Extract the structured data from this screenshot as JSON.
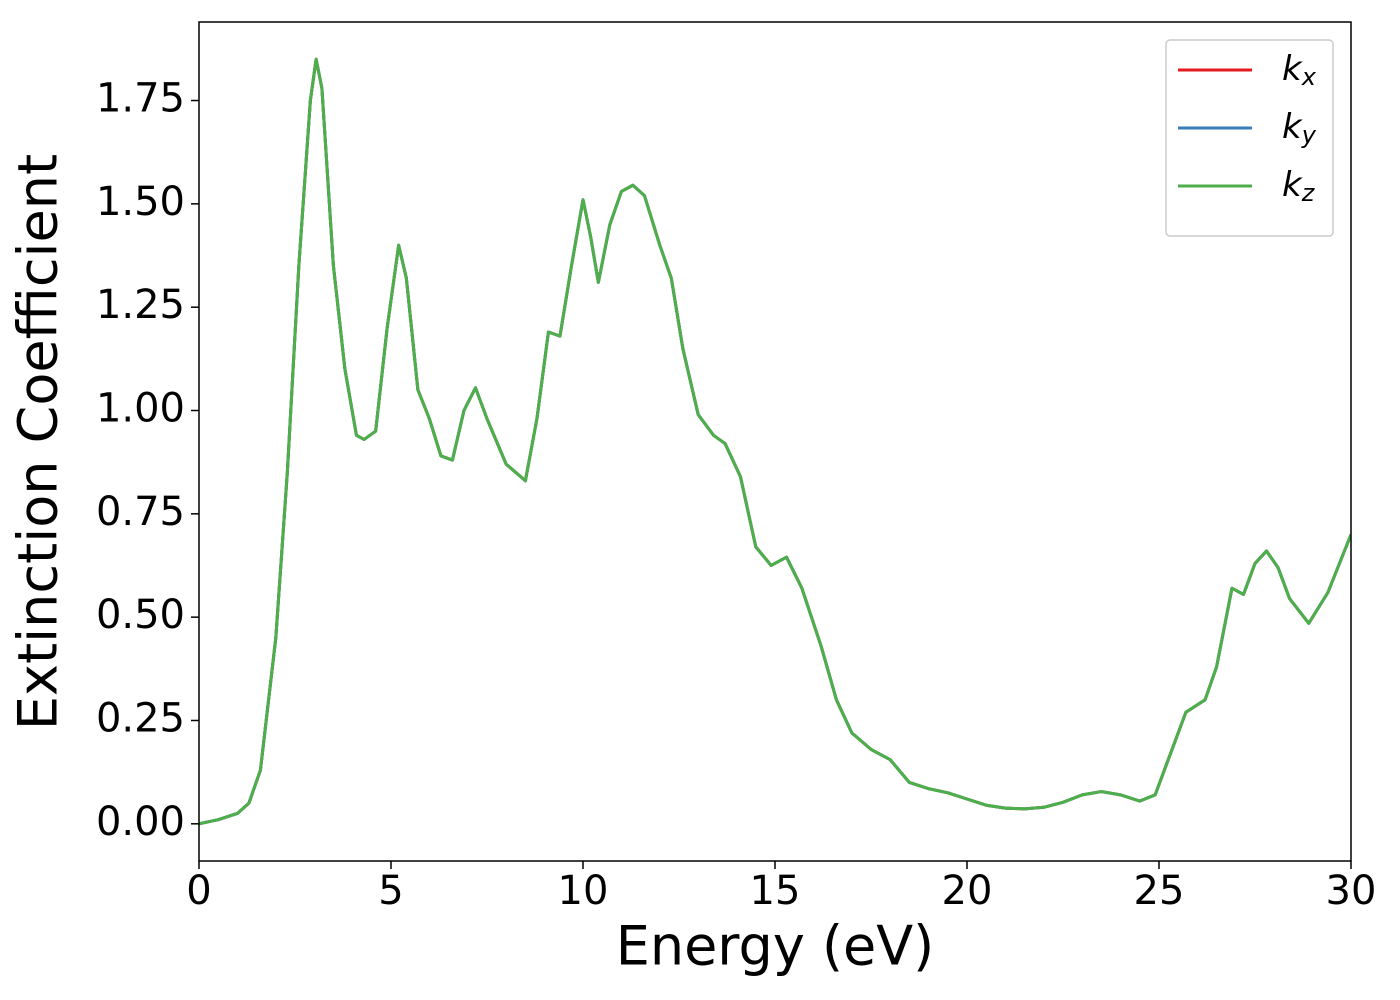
{
  "chart_data": {
    "type": "line",
    "xlabel": "Energy (eV)",
    "ylabel": "Extinction Coefficient",
    "x": [
      0,
      0.5,
      1.0,
      1.3,
      1.6,
      2.0,
      2.3,
      2.6,
      2.9,
      3.05,
      3.2,
      3.5,
      3.8,
      4.1,
      4.3,
      4.6,
      4.9,
      5.2,
      5.4,
      5.7,
      6.0,
      6.3,
      6.6,
      6.9,
      7.2,
      7.5,
      8.0,
      8.5,
      8.8,
      9.1,
      9.4,
      9.7,
      10.0,
      10.2,
      10.4,
      10.7,
      11.0,
      11.3,
      11.6,
      12.0,
      12.3,
      12.6,
      13.0,
      13.4,
      13.7,
      14.1,
      14.5,
      14.9,
      15.3,
      15.7,
      16.2,
      16.6,
      17.0,
      17.5,
      18.0,
      18.5,
      19.0,
      19.5,
      20.0,
      20.5,
      21.0,
      21.5,
      22.0,
      22.5,
      23.0,
      23.5,
      24.0,
      24.5,
      24.9,
      25.3,
      25.7,
      26.2,
      26.5,
      26.9,
      27.2,
      27.5,
      27.8,
      28.1,
      28.4,
      28.9,
      29.4,
      30.0
    ],
    "series": [
      {
        "name": "kx",
        "color": "#e41a1c",
        "values": [
          0.0,
          0.01,
          0.025,
          0.05,
          0.13,
          0.45,
          0.85,
          1.35,
          1.75,
          1.85,
          1.78,
          1.35,
          1.1,
          0.94,
          0.93,
          0.95,
          1.2,
          1.4,
          1.32,
          1.05,
          0.98,
          0.89,
          0.88,
          1.0,
          1.055,
          0.98,
          0.87,
          0.83,
          0.98,
          1.19,
          1.18,
          1.35,
          1.51,
          1.42,
          1.31,
          1.45,
          1.53,
          1.545,
          1.52,
          1.4,
          1.32,
          1.15,
          0.99,
          0.94,
          0.92,
          0.84,
          0.67,
          0.625,
          0.645,
          0.57,
          0.43,
          0.3,
          0.22,
          0.18,
          0.155,
          0.1,
          0.085,
          0.075,
          0.06,
          0.045,
          0.038,
          0.036,
          0.04,
          0.052,
          0.07,
          0.078,
          0.07,
          0.055,
          0.07,
          0.17,
          0.27,
          0.3,
          0.38,
          0.57,
          0.555,
          0.63,
          0.66,
          0.62,
          0.545,
          0.485,
          0.56,
          0.7
        ]
      },
      {
        "name": "ky",
        "color": "#377eb8",
        "values": [
          0.0,
          0.01,
          0.025,
          0.05,
          0.13,
          0.45,
          0.85,
          1.35,
          1.75,
          1.85,
          1.78,
          1.35,
          1.1,
          0.94,
          0.93,
          0.95,
          1.2,
          1.4,
          1.32,
          1.05,
          0.98,
          0.89,
          0.88,
          1.0,
          1.055,
          0.98,
          0.87,
          0.83,
          0.98,
          1.19,
          1.18,
          1.35,
          1.51,
          1.42,
          1.31,
          1.45,
          1.53,
          1.545,
          1.52,
          1.4,
          1.32,
          1.15,
          0.99,
          0.94,
          0.92,
          0.84,
          0.67,
          0.625,
          0.645,
          0.57,
          0.43,
          0.3,
          0.22,
          0.18,
          0.155,
          0.1,
          0.085,
          0.075,
          0.06,
          0.045,
          0.038,
          0.036,
          0.04,
          0.052,
          0.07,
          0.078,
          0.07,
          0.055,
          0.07,
          0.17,
          0.27,
          0.3,
          0.38,
          0.57,
          0.555,
          0.63,
          0.66,
          0.62,
          0.545,
          0.485,
          0.56,
          0.7
        ]
      },
      {
        "name": "kz",
        "color": "#4daf4a",
        "values": [
          0.0,
          0.01,
          0.025,
          0.05,
          0.13,
          0.45,
          0.85,
          1.35,
          1.75,
          1.85,
          1.78,
          1.35,
          1.1,
          0.94,
          0.93,
          0.95,
          1.2,
          1.4,
          1.32,
          1.05,
          0.98,
          0.89,
          0.88,
          1.0,
          1.055,
          0.98,
          0.87,
          0.83,
          0.98,
          1.19,
          1.18,
          1.35,
          1.51,
          1.42,
          1.31,
          1.45,
          1.53,
          1.545,
          1.52,
          1.4,
          1.32,
          1.15,
          0.99,
          0.94,
          0.92,
          0.84,
          0.67,
          0.625,
          0.645,
          0.57,
          0.43,
          0.3,
          0.22,
          0.18,
          0.155,
          0.1,
          0.085,
          0.075,
          0.06,
          0.045,
          0.038,
          0.036,
          0.04,
          0.052,
          0.07,
          0.078,
          0.07,
          0.055,
          0.07,
          0.17,
          0.27,
          0.3,
          0.38,
          0.57,
          0.555,
          0.63,
          0.66,
          0.62,
          0.545,
          0.485,
          0.56,
          0.7
        ]
      }
    ],
    "xlim": [
      0,
      30
    ],
    "xticks": [
      0,
      5,
      10,
      15,
      20,
      25,
      30
    ],
    "ylim": [
      -0.09,
      1.94
    ],
    "yticks": [
      {
        "value": 0,
        "label": "0.00"
      },
      0.25,
      {
        "value": 0.5,
        "label": "0.50"
      },
      0.75,
      {
        "value": 1,
        "label": "1.00"
      },
      1.25,
      {
        "value": 1.5,
        "label": "1.50"
      },
      1.75
    ],
    "legend": "upper right",
    "grid": false
  }
}
